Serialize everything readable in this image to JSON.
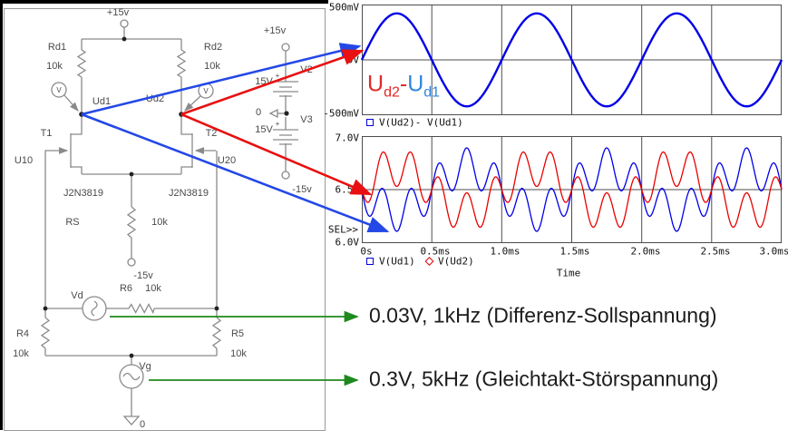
{
  "schematic": {
    "supply_top": "+15v",
    "rd1": {
      "name": "Rd1",
      "value": "10k"
    },
    "rd2": {
      "name": "Rd2",
      "value": "10k"
    },
    "probe_left": "V",
    "probe_right": "V",
    "node_ud1": "Ud1",
    "node_ud2": "Ud2",
    "t1": "T1",
    "t2": "T2",
    "u10": "U10",
    "u20": "U20",
    "jfet_left": "J2N3819",
    "jfet_right": "J2N3819",
    "rs": {
      "name": "RS",
      "value": "10k"
    },
    "neg15_mid": "-15v",
    "r6": {
      "name": "R6",
      "value": "10k"
    },
    "vd": "Vd",
    "r4": {
      "name": "R4",
      "value": "10k"
    },
    "r5": {
      "name": "R5",
      "value": "10k"
    },
    "vg": "Vg",
    "gnd": "0"
  },
  "psu": {
    "top": "+15v",
    "plus": "+",
    "v2": "V2",
    "v2_value": "15V",
    "gnd": "0",
    "v3": "V3",
    "v3_value": "15V",
    "bottom": "-15v"
  },
  "annotations": [
    {
      "text": "0.03V, 1kHz (Differenz-Sollspannung)",
      "arrow_color": "#1e8a1e"
    },
    {
      "text": "0.3V, 5kHz (Gleichtakt-Störspannung)",
      "arrow_color": "#1e8a1e"
    }
  ],
  "colors": {
    "trace_blue": "#0000e8",
    "trace_red": "#e80000",
    "arrow_blue": "#2448e6",
    "arrow_red": "#e81010",
    "arrow_green": "#1e8a1e",
    "wire_gray": "#8a8a8a"
  },
  "chart_data": [
    {
      "type": "line",
      "title": "",
      "ylabel": "",
      "xlabel": "",
      "y_ticks": [
        "500mV",
        "0V",
        "-500mV"
      ],
      "ylim_v": [
        -0.5,
        0.5
      ],
      "x_range_ms": [
        0,
        3
      ],
      "grid": "vertical every 0.5ms, horizontal zero line",
      "legend_position": "below-left",
      "legend": [
        {
          "marker": "square",
          "marker_color": "#0000e0",
          "label": "V(Ud2)- V(Ud1)"
        }
      ],
      "inner_label": {
        "parts": [
          {
            "text": "U",
            "sub": "d2",
            "color": "#e02828"
          },
          {
            "text": "-",
            "sub": "",
            "color": "#e02828"
          },
          {
            "text": "U",
            "sub": "d1",
            "color": "#2e86e0"
          }
        ]
      },
      "series": [
        {
          "name": "V(Ud2)- V(Ud1)",
          "color": "#0000e8",
          "offset_v": 0,
          "components": [
            {
              "freq_khz": 1,
              "amp_v": 0.42
            }
          ]
        }
      ]
    },
    {
      "type": "line",
      "title": "",
      "ylabel": "",
      "xlabel": "Time",
      "sel_label": "SEL>>",
      "y_ticks": [
        "7.0V",
        "6.5V",
        "6.0V"
      ],
      "ylim_v": [
        6.0,
        7.0
      ],
      "x_range_ms": [
        0,
        3
      ],
      "x_ticks": [
        "0s",
        "0.5ms",
        "1.0ms",
        "1.5ms",
        "2.0ms",
        "2.5ms",
        "3.0ms"
      ],
      "grid": "vertical every 0.5ms, horizontal mid line at 6.5V",
      "legend_position": "below-left",
      "legend": [
        {
          "marker": "square",
          "marker_color": "#0000e0",
          "label": "V(Ud1)"
        },
        {
          "marker": "diamond",
          "marker_color": "#e00000",
          "label": "V(Ud2)"
        }
      ],
      "series": [
        {
          "name": "V(Ud1)",
          "color": "#0000e8",
          "offset_v": 6.5,
          "components": [
            {
              "freq_khz": 1,
              "amp_v": -0.21
            },
            {
              "freq_khz": 5,
              "amp_v": -0.18
            }
          ]
        },
        {
          "name": "V(Ud2)",
          "color": "#e80000",
          "offset_v": 6.5,
          "components": [
            {
              "freq_khz": 1,
              "amp_v": 0.21
            },
            {
              "freq_khz": 5,
              "amp_v": -0.18
            }
          ]
        }
      ]
    }
  ]
}
